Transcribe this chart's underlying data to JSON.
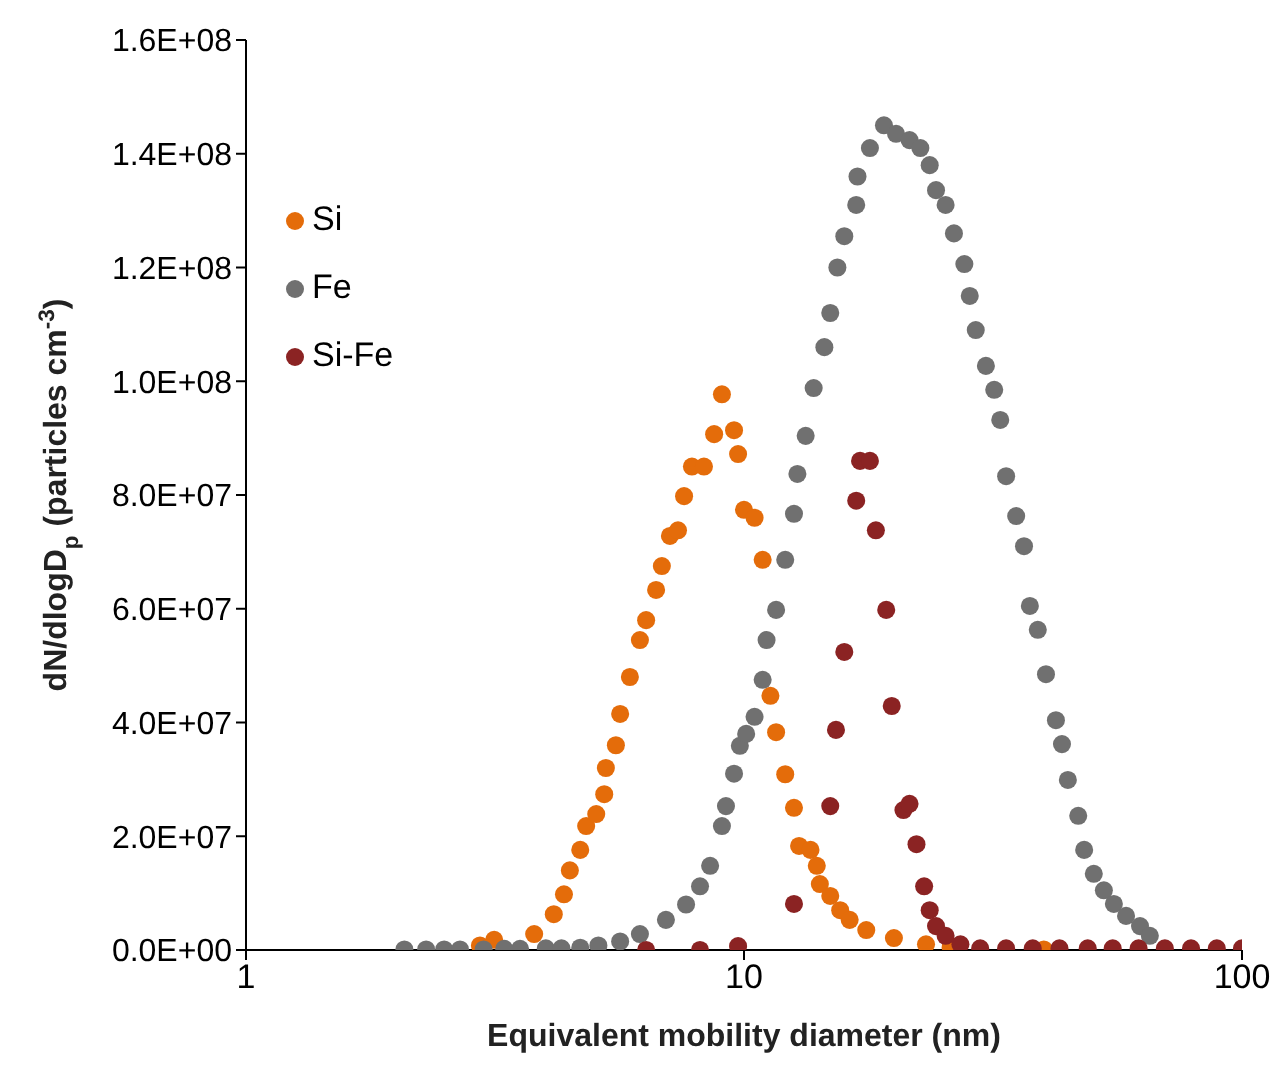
{
  "chart_data": {
    "type": "scatter",
    "xlabel": "Equivalent mobility diameter (nm)",
    "ylabel": "dN/dlogD$_{p}$ (particles cm$^{-3}$)",
    "log": "x",
    "grid": false,
    "legend": "top left",
    "marker": "circle",
    "xlim": [
      1,
      100
    ],
    "xticks": [
      1,
      10,
      100
    ],
    "ylim": [
      0,
      160000000
    ],
    "yticks": [
      {
        "value": 0,
        "label": "0.0E+00"
      },
      {
        "value": 20000000,
        "label": "2.0E+07"
      },
      {
        "value": 40000000,
        "label": "4.0E+07"
      },
      {
        "value": 60000000,
        "label": "6.0E+07"
      },
      {
        "value": 80000000,
        "label": "8.0E+07"
      },
      {
        "value": 100000000,
        "label": "1.0E+08"
      },
      {
        "value": 120000000,
        "label": "1.2E+08"
      },
      {
        "value": 140000000,
        "label": "1.4E+08"
      },
      {
        "value": 160000000,
        "label": "1.6E+08"
      }
    ],
    "series": [
      {
        "name": "Si",
        "color": "#e46c0a",
        "x": [
          2.95,
          3.15,
          3.79,
          4.15,
          4.35,
          4.47,
          4.69,
          4.82,
          5.05,
          5.24,
          5.28,
          5.53,
          5.64,
          5.9,
          6.18,
          6.36,
          6.66,
          6.84,
          7.1,
          7.37,
          7.58,
          7.86,
          8.31,
          8.71,
          9.03,
          9.55,
          9.73,
          10.0,
          10.5,
          10.9,
          11.3,
          11.6,
          12.1,
          12.6,
          12.9,
          13.6,
          14.0,
          14.2,
          14.9,
          15.6,
          16.3,
          17.6,
          20.0,
          23.2,
          26.0,
          40.0
        ],
        "values": [
          800000.0,
          1800000.0,
          2800000.0,
          6300000.0,
          9800000.0,
          14000000.0,
          17600000.0,
          21800000.0,
          23900000.0,
          27400000.0,
          32000000.0,
          36000000.0,
          41500000.0,
          48000000.0,
          54500000.0,
          58000000.0,
          63300000.0,
          67500000.0,
          72800000.0,
          73800000.0,
          79800000.0,
          85000000.0,
          85000000.0,
          90700000.0,
          97700000.0,
          91400000.0,
          87200000.0,
          77400000.0,
          76000000.0,
          68600000.0,
          44700000.0,
          38300000.0,
          30900000.0,
          25000000.0,
          18300000.0,
          17600000.0,
          14800000.0,
          11600000.0,
          9500000.0,
          7000000.0,
          5300000.0,
          3500000.0,
          2100000.0,
          1000000.0,
          500000.0,
          100000.0
        ]
      },
      {
        "name": "Fe",
        "color": "#707070",
        "x": [
          2.08,
          2.3,
          2.5,
          2.69,
          3.0,
          3.3,
          3.55,
          4.0,
          4.3,
          4.69,
          5.1,
          5.64,
          6.18,
          6.97,
          7.65,
          8.16,
          8.55,
          9.03,
          9.2,
          9.55,
          9.81,
          10.1,
          10.5,
          10.9,
          11.1,
          11.6,
          12.1,
          12.6,
          12.8,
          13.3,
          13.8,
          14.5,
          14.9,
          15.4,
          15.9,
          16.8,
          16.9,
          17.9,
          19.1,
          20.2,
          21.5,
          22.6,
          23.6,
          24.3,
          25.4,
          26.4,
          27.7,
          28.4,
          29.2,
          30.6,
          31.8,
          32.7,
          33.6,
          35.2,
          36.5,
          37.5,
          38.9,
          40.4,
          42.3,
          43.5,
          44.7,
          46.9,
          48.2,
          50.4,
          52.8,
          55.3,
          58.5,
          62.4,
          65.3
        ],
        "values": [
          100000.0,
          100000.0,
          100000.0,
          100000.0,
          100000.0,
          200000.0,
          200000.0,
          300000.0,
          300000.0,
          400000.0,
          800000.0,
          1500000.0,
          2800000.0,
          5300000.0,
          8000000.0,
          11200000.0,
          14800000.0,
          21800000.0,
          25300000.0,
          31000000.0,
          35900000.0,
          38000000.0,
          41000000.0,
          47500000.0,
          54500000.0,
          59800000.0,
          68600000.0,
          76700000.0,
          83700000.0,
          90400000.0,
          98800000.0,
          106000000.0,
          112000000.0,
          120000000.0,
          125500000.0,
          131000000.0,
          136000000.0,
          141000000.0,
          145000000.0,
          143500000.0,
          142400000.0,
          141000000.0,
          138000000.0,
          133600000.0,
          131000000.0,
          126000000.0,
          120600000.0,
          115000000.0,
          109000000.0,
          102700000.0,
          98500000.0,
          93200000.0,
          83300000.0,
          76300000.0,
          71000000.0,
          60500000.0,
          56300000.0,
          48500000.0,
          40400000.0,
          36200000.0,
          29900000.0,
          23600000.0,
          17600000.0,
          13400000.0,
          10500000.0,
          8100000.0,
          6000000.0,
          4200000.0,
          2500000.0
        ]
      },
      {
        "name": "Si-Fe",
        "color": "#8b2323",
        "x": [
          6.36,
          8.16,
          9.73,
          12.6,
          14.9,
          15.3,
          15.9,
          16.8,
          17.1,
          17.9,
          18.4,
          19.3,
          19.8,
          20.9,
          21.5,
          22.2,
          23.0,
          23.6,
          24.3,
          25.4,
          27.2,
          29.8,
          33.6,
          38.0,
          43.0,
          49.0,
          55.0,
          62.0,
          70.0,
          79.0,
          89.0,
          100.0
        ],
        "values": [
          0,
          0,
          700000.0,
          8100000.0,
          25300000.0,
          38700000.0,
          52400000.0,
          79000000.0,
          86000000.0,
          86000000.0,
          73800000.0,
          59800000.0,
          42900000.0,
          24600000.0,
          25700000.0,
          18600000.0,
          11200000.0,
          7000000.0,
          4200000.0,
          2500000.0,
          1000000.0,
          300000.0,
          300000.0,
          300000.0,
          300000.0,
          300000.0,
          300000.0,
          300000.0,
          300000.0,
          300000.0,
          300000.0,
          300000.0
        ]
      }
    ]
  }
}
